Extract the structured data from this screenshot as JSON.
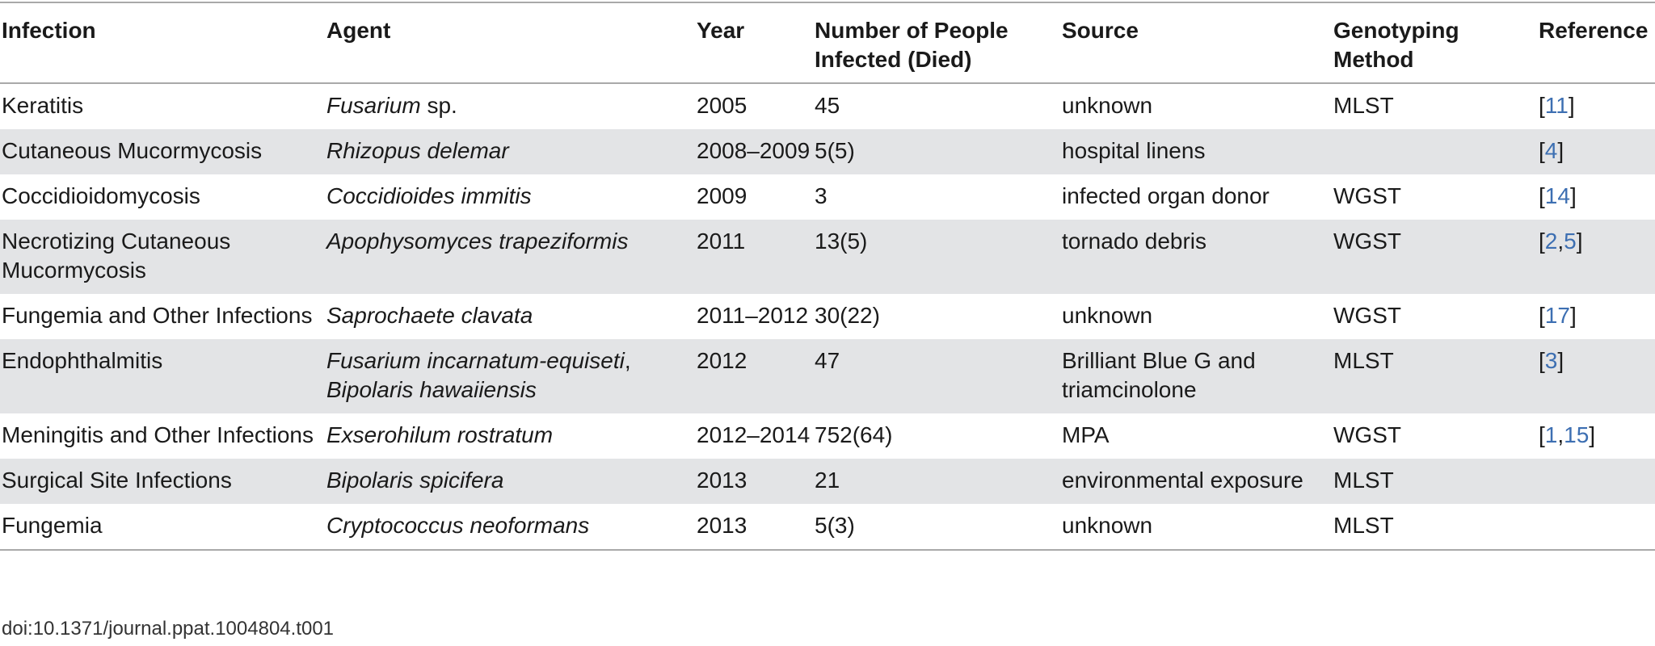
{
  "table": {
    "headers": [
      "Infection",
      "Agent",
      "Year",
      "Number of People Infected (Died)",
      "Source",
      "Genotyping Method",
      "Reference"
    ],
    "rows": [
      {
        "infection": "Keratitis",
        "agent_italic": "Fusarium",
        "agent_plain": " sp.",
        "agent_italic_2": "",
        "year": "2005",
        "number": "45",
        "source": "unknown",
        "method": "MLST",
        "refs": [
          "11"
        ]
      },
      {
        "infection": "Cutaneous Mucormycosis",
        "agent_italic": "Rhizopus delemar",
        "agent_plain": "",
        "agent_italic_2": "",
        "year": "2008–2009",
        "number": "5(5)",
        "source": "hospital linens",
        "method": "",
        "refs": [
          "4"
        ]
      },
      {
        "infection": "Coccidioidomycosis",
        "agent_italic": "Coccidioides immitis",
        "agent_plain": "",
        "agent_italic_2": "",
        "year": "2009",
        "number": "3",
        "source": "infected organ donor",
        "method": "WGST",
        "refs": [
          "14"
        ]
      },
      {
        "infection": "Necrotizing Cutaneous Mucormycosis",
        "agent_italic": "Apophysomyces trapeziformis",
        "agent_plain": "",
        "agent_italic_2": "",
        "year": "2011",
        "number": "13(5)",
        "source": "tornado debris",
        "method": "WGST",
        "refs": [
          "2",
          "5"
        ]
      },
      {
        "infection": "Fungemia and Other Infections",
        "agent_italic": "Saprochaete clavata",
        "agent_plain": "",
        "agent_italic_2": "",
        "year": "2011–2012",
        "number": "30(22)",
        "source": "unknown",
        "method": "WGST",
        "refs": [
          "17"
        ]
      },
      {
        "infection": "Endophthalmitis",
        "agent_italic": "Fusarium incarnatum-equiseti",
        "agent_plain": ", ",
        "agent_italic_2": "Bipolaris hawaiiensis",
        "year": "2012",
        "number": "47",
        "source": "Brilliant Blue G and triamcinolone",
        "method": "MLST",
        "refs": [
          "3"
        ]
      },
      {
        "infection": "Meningitis and Other Infections",
        "agent_italic": "Exserohilum rostratum",
        "agent_plain": "",
        "agent_italic_2": "",
        "year": "2012–2014",
        "number": "752(64)",
        "source": "MPA",
        "method": "WGST",
        "refs": [
          "1",
          "15"
        ]
      },
      {
        "infection": "Surgical Site Infections",
        "agent_italic": "Bipolaris spicifera",
        "agent_plain": "",
        "agent_italic_2": "",
        "year": "2013",
        "number": "21",
        "source": "environmental exposure",
        "method": "MLST",
        "refs": []
      },
      {
        "infection": "Fungemia",
        "agent_italic": "Cryptococcus neoformans",
        "agent_plain": "",
        "agent_italic_2": "",
        "year": "2013",
        "number": "5(3)",
        "source": "unknown",
        "method": "MLST",
        "refs": []
      }
    ]
  },
  "doi": "doi:10.1371/journal.ppat.1004804.t001",
  "colors": {
    "row_stripe": "#e3e4e6",
    "rule": "#a9a9a9",
    "link": "#3d6fb2"
  }
}
